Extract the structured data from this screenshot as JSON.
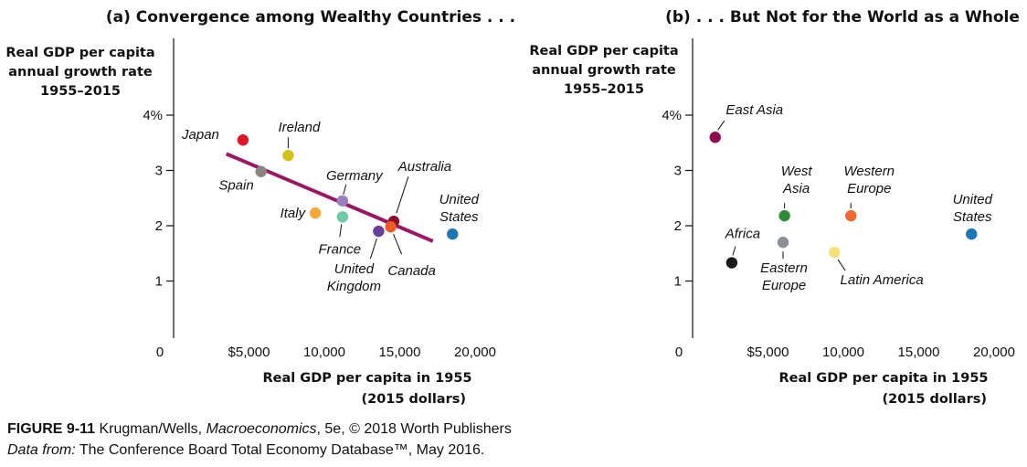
{
  "chart_data": [
    {
      "type": "scatter",
      "title": "(a) Convergence among Wealthy Countries . . .",
      "ylabel": [
        "Real GDP per capita",
        "annual growth rate",
        "1955–2015"
      ],
      "xlabel": [
        "Real GDP per capita in 1955",
        "(2015 dollars)"
      ],
      "xlim": [
        0,
        20000
      ],
      "ylim": [
        0,
        4.5
      ],
      "xticks": [
        {
          "value": 0,
          "label": "0"
        },
        {
          "value": 5000,
          "label": "$5,000"
        },
        {
          "value": 10000,
          "label": "10,000"
        },
        {
          "value": 15000,
          "label": "15,000"
        },
        {
          "value": 20000,
          "label": "20,000"
        }
      ],
      "yticks": [
        {
          "value": 1,
          "label": "1"
        },
        {
          "value": 2,
          "label": "2"
        },
        {
          "value": 3,
          "label": "3"
        },
        {
          "value": 4,
          "label": "4%"
        }
      ],
      "points": [
        {
          "name": "Japan",
          "label": [
            "Japan"
          ],
          "x": 4600,
          "y": 3.55,
          "color": "#e0162b"
        },
        {
          "name": "Ireland",
          "label": [
            "Ireland"
          ],
          "x": 7600,
          "y": 3.27,
          "color": "#d4c21a"
        },
        {
          "name": "Spain",
          "label": [
            "Spain"
          ],
          "x": 5800,
          "y": 2.98,
          "color": "#8b8682"
        },
        {
          "name": "Germany",
          "label": [
            "Germany"
          ],
          "x": 11200,
          "y": 2.45,
          "color": "#9b7fbf"
        },
        {
          "name": "Italy",
          "label": [
            "Italy"
          ],
          "x": 9400,
          "y": 2.23,
          "color": "#f6a93a"
        },
        {
          "name": "France",
          "label": [
            "France"
          ],
          "x": 11200,
          "y": 2.16,
          "color": "#6fc9a6"
        },
        {
          "name": "Australia",
          "label": [
            "Australia"
          ],
          "x": 14600,
          "y": 2.08,
          "color": "#8d0d2f"
        },
        {
          "name": "Canada",
          "label": [
            "Canada"
          ],
          "x": 14400,
          "y": 1.98,
          "color": "#ee5a24"
        },
        {
          "name": "United Kingdom",
          "label": [
            "United",
            "Kingdom"
          ],
          "x": 13600,
          "y": 1.9,
          "color": "#6a3d9a"
        },
        {
          "name": "United States",
          "label": [
            "United",
            "States"
          ],
          "x": 18500,
          "y": 1.85,
          "color": "#1f78b4"
        }
      ],
      "trend_line": {
        "x": [
          3500,
          17200
        ],
        "y": [
          3.3,
          1.72
        ],
        "color": "#9b1763"
      }
    },
    {
      "type": "scatter",
      "title": "(b) . . . But Not for the World as a Whole",
      "ylabel": [
        "Real GDP per capita",
        "annual growth rate",
        "1955–2015"
      ],
      "xlabel": [
        "Real GDP per capita in 1955",
        "(2015 dollars)"
      ],
      "xlim": [
        0,
        20000
      ],
      "ylim": [
        0,
        4.5
      ],
      "xticks": [
        {
          "value": 0,
          "label": "0"
        },
        {
          "value": 5000,
          "label": "$5,000"
        },
        {
          "value": 10000,
          "label": "10,000"
        },
        {
          "value": 15000,
          "label": "15,000"
        },
        {
          "value": 20000,
          "label": "20,000"
        }
      ],
      "yticks": [
        {
          "value": 1,
          "label": "1"
        },
        {
          "value": 2,
          "label": "2"
        },
        {
          "value": 3,
          "label": "3"
        },
        {
          "value": 4,
          "label": "4%"
        }
      ],
      "points": [
        {
          "name": "East Asia",
          "label": [
            "East Asia"
          ],
          "x": 1500,
          "y": 3.6,
          "color": "#8d0d4f"
        },
        {
          "name": "West Asia",
          "label": [
            "West",
            "Asia"
          ],
          "x": 6100,
          "y": 2.18,
          "color": "#2e8b3a"
        },
        {
          "name": "Western Europe",
          "label": [
            "Western",
            "Europe"
          ],
          "x": 10500,
          "y": 2.18,
          "color": "#ee6a2a"
        },
        {
          "name": "United States",
          "label": [
            "United",
            "States"
          ],
          "x": 18500,
          "y": 1.85,
          "color": "#1f78b4"
        },
        {
          "name": "Africa",
          "label": [
            "Africa"
          ],
          "x": 2600,
          "y": 1.33,
          "color": "#1a1a1a"
        },
        {
          "name": "Eastern Europe",
          "label": [
            "Eastern",
            "Europe"
          ],
          "x": 6000,
          "y": 1.7,
          "color": "#8a8f96"
        },
        {
          "name": "Latin America",
          "label": [
            "Latin America"
          ],
          "x": 9400,
          "y": 1.52,
          "color": "#f7e07a"
        }
      ]
    }
  ],
  "caption": {
    "figure_label": "FIGURE 9-11",
    "authors": " Krugman/Wells, ",
    "book": "Macroeconomics",
    "publisher": ", 5e, © 2018 Worth Publishers",
    "source_label": "Data from:",
    "source": " The Conference Board Total Economy Database™, May 2016."
  }
}
